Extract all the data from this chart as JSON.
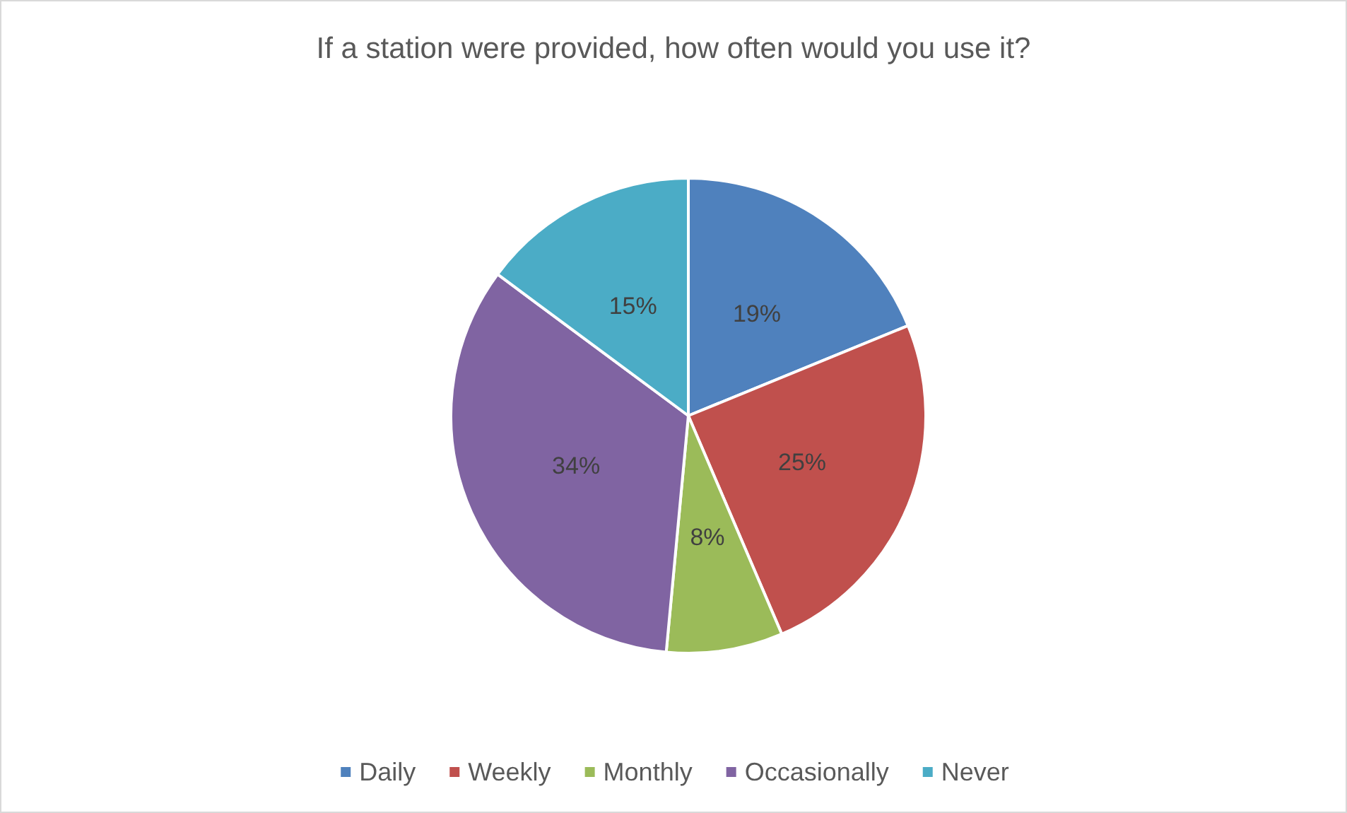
{
  "chart_data": {
    "type": "pie",
    "title": "If a station were provided, how often would you use it?",
    "categories": [
      "Daily",
      "Weekly",
      "Monthly",
      "Occasionally",
      "Never"
    ],
    "values": [
      19,
      25,
      8,
      34,
      15
    ],
    "colors": [
      "#4f81bd",
      "#c0504d",
      "#9bbb59",
      "#8064a2",
      "#4bacc6"
    ],
    "value_labels": [
      "19%",
      "25%",
      "8%",
      "34%",
      "15%"
    ],
    "legend": "bottom"
  }
}
